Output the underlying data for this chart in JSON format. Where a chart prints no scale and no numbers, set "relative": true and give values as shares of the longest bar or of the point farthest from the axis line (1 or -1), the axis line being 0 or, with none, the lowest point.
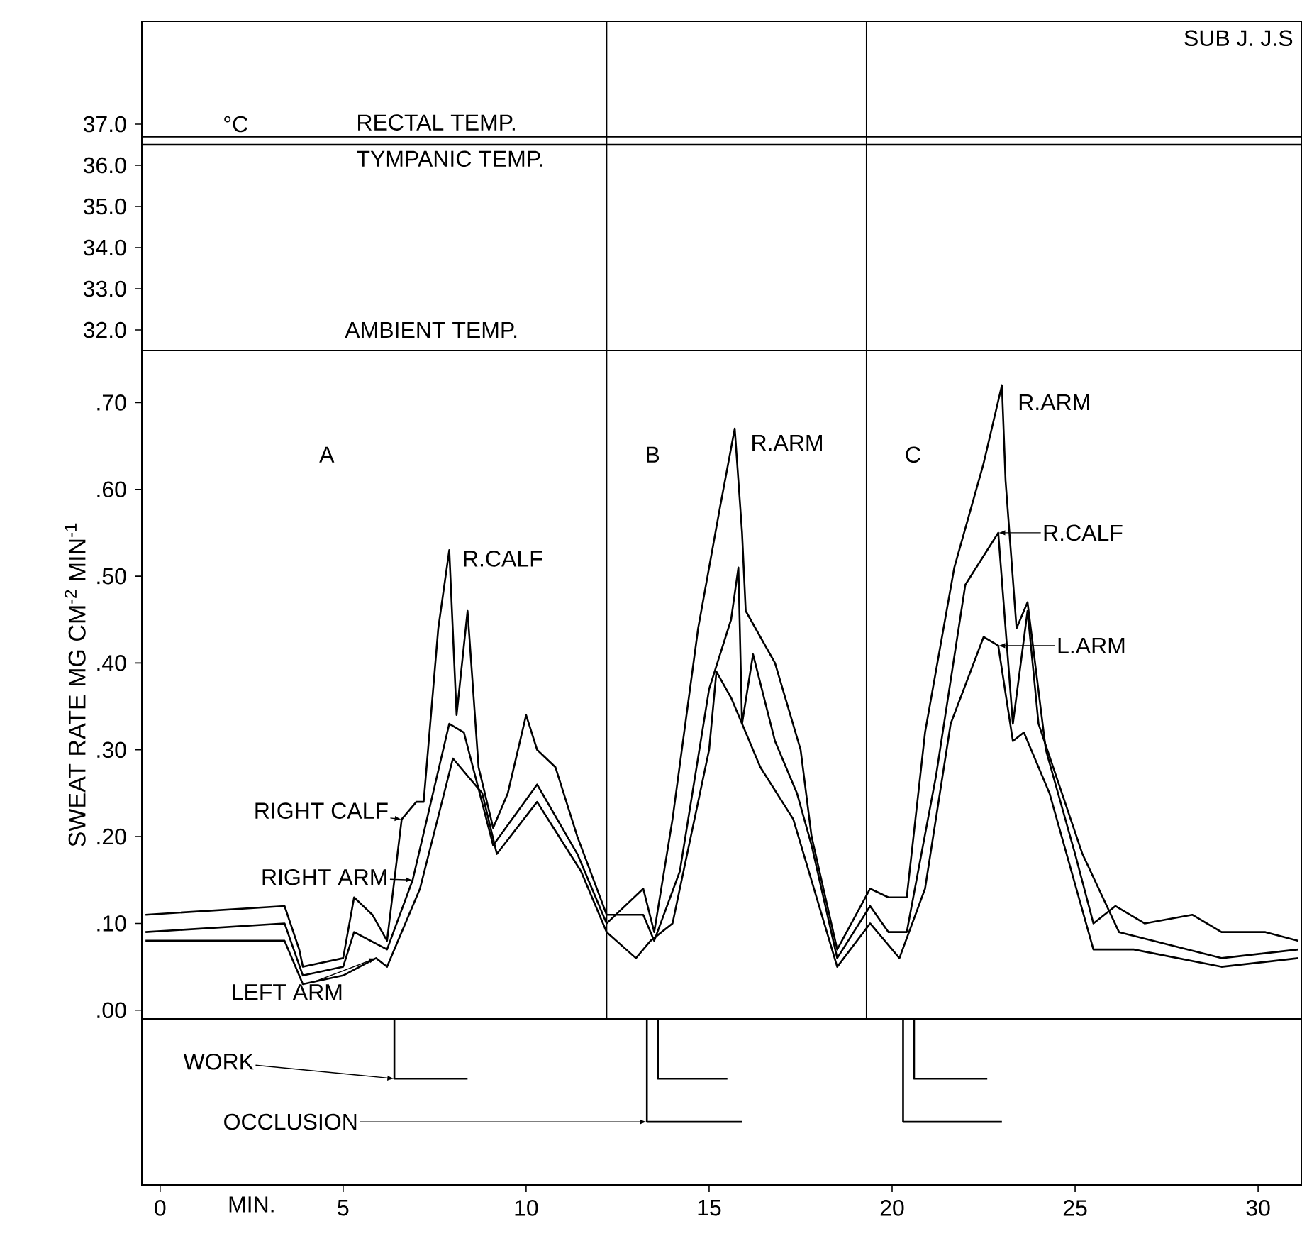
{
  "chart_data": [
    {
      "type": "line",
      "title": "SUB J. J.S",
      "ylabel": "°C",
      "xlim": [
        -0.5,
        31.2
      ],
      "ylim": [
        31.5,
        39.5
      ],
      "tick_labels": "y",
      "yticks": [
        {
          "value": 37,
          "label": "37.0"
        },
        {
          "value": 36,
          "label": "36.0"
        },
        {
          "value": 35,
          "label": "35.0"
        },
        {
          "value": 34,
          "label": "34.0"
        },
        {
          "value": 33,
          "label": "33.0"
        },
        {
          "value": 32,
          "label": "32.0"
        }
      ],
      "series": [
        {
          "name": "RECTAL TEMP.",
          "color": "#000000",
          "x": [
            -0.5,
            31.2
          ],
          "values": [
            36.7,
            36.7
          ]
        },
        {
          "name": "TYMPANIC TEMP.",
          "color": "#000000",
          "x": [
            -0.5,
            31.2
          ],
          "values": [
            36.5,
            36.5
          ]
        }
      ],
      "annotations": [
        "AMBIENT TEMP."
      ],
      "ref_lines": [
        {
          "axis": "x",
          "value": 12.2
        },
        {
          "axis": "x",
          "value": 19.3
        }
      ]
    },
    {
      "type": "line",
      "ylabel": "SWEAT RATE  MG CM$^{-2}$ MIN$^{-1}$",
      "xlim": [
        -0.5,
        31.2
      ],
      "ylim": [
        -0.01,
        0.76
      ],
      "tick_labels": "y",
      "legend": "left",
      "yticks": [
        {
          "value": 0,
          "label": ".00"
        },
        {
          "value": 0.1,
          "label": ".10"
        },
        {
          "value": 0.2,
          "label": ".20"
        },
        {
          "value": 0.3,
          "label": ".30"
        },
        {
          "value": 0.4,
          "label": ".40"
        },
        {
          "value": 0.5,
          "label": ".50"
        },
        {
          "value": 0.6,
          "label": ".60"
        },
        {
          "value": 0.7,
          "label": ".70"
        }
      ],
      "series": [
        {
          "name": "RIGHT CALF",
          "color": "#000000",
          "x": [
            -0.4,
            3.4,
            3.8,
            3.9,
            5.0,
            5.3,
            5.8,
            6.2,
            6.6,
            7.0,
            7.2,
            7.6,
            7.9,
            8.1,
            8.4,
            8.7,
            9.1,
            9.5,
            10.0,
            10.3,
            10.8,
            11.4,
            12.2,
            13.2,
            13.5,
            14.2,
            15.0,
            15.6,
            15.8,
            15.9,
            16.2,
            16.8,
            17.4,
            17.8,
            18.5,
            19.4,
            19.9,
            20.4,
            21.2,
            22.0,
            22.9,
            23.3,
            23.7,
            24.0,
            25.2,
            26.2,
            29.0,
            31.1
          ],
          "values": [
            0.11,
            0.12,
            0.07,
            0.05,
            0.06,
            0.13,
            0.11,
            0.08,
            0.22,
            0.24,
            0.24,
            0.44,
            0.53,
            0.34,
            0.46,
            0.28,
            0.21,
            0.25,
            0.34,
            0.3,
            0.28,
            0.2,
            0.11,
            0.11,
            0.08,
            0.16,
            0.37,
            0.45,
            0.51,
            0.33,
            0.41,
            0.31,
            0.25,
            0.19,
            0.06,
            0.12,
            0.09,
            0.09,
            0.27,
            0.49,
            0.55,
            0.33,
            0.46,
            0.33,
            0.18,
            0.09,
            0.06,
            0.07
          ]
        },
        {
          "name": "RIGHT ARM",
          "color": "#000000",
          "x": [
            -0.4,
            3.4,
            3.9,
            5.0,
            5.3,
            6.2,
            6.9,
            7.9,
            8.3,
            9.1,
            10.3,
            11.4,
            12.2,
            13.2,
            13.5,
            14.0,
            14.7,
            15.3,
            15.7,
            15.9,
            16.0,
            16.8,
            17.5,
            17.8,
            18.5,
            19.4,
            19.9,
            20.4,
            20.9,
            21.7,
            22.5,
            23.0,
            23.1,
            23.4,
            23.7,
            24.2,
            25.0,
            25.5,
            26.1,
            26.9,
            28.2,
            29.0,
            30.2,
            31.1
          ],
          "values": [
            0.09,
            0.1,
            0.04,
            0.05,
            0.09,
            0.07,
            0.15,
            0.33,
            0.32,
            0.19,
            0.26,
            0.18,
            0.1,
            0.14,
            0.09,
            0.22,
            0.44,
            0.58,
            0.67,
            0.55,
            0.46,
            0.4,
            0.3,
            0.2,
            0.07,
            0.14,
            0.13,
            0.13,
            0.32,
            0.51,
            0.63,
            0.72,
            0.61,
            0.44,
            0.47,
            0.3,
            0.18,
            0.1,
            0.12,
            0.1,
            0.11,
            0.09,
            0.09,
            0.08
          ]
        },
        {
          "name": "LEFT ARM",
          "color": "#000000",
          "x": [
            -0.4,
            3.4,
            3.9,
            5.0,
            5.9,
            6.2,
            7.1,
            8.0,
            8.8,
            9.2,
            10.3,
            11.5,
            12.2,
            13.0,
            13.4,
            14.0,
            15.0,
            15.2,
            15.6,
            16.4,
            17.3,
            18.5,
            19.4,
            20.2,
            20.9,
            21.6,
            22.5,
            22.9,
            23.3,
            23.6,
            24.3,
            25.5,
            26.6,
            29.0,
            31.1
          ],
          "values": [
            0.08,
            0.08,
            0.03,
            0.04,
            0.06,
            0.05,
            0.14,
            0.29,
            0.25,
            0.18,
            0.24,
            0.16,
            0.09,
            0.06,
            0.08,
            0.1,
            0.3,
            0.39,
            0.36,
            0.28,
            0.22,
            0.05,
            0.1,
            0.06,
            0.14,
            0.33,
            0.43,
            0.42,
            0.31,
            0.32,
            0.25,
            0.07,
            0.07,
            0.05,
            0.06
          ]
        }
      ],
      "annotations": [
        "A",
        "B",
        "C",
        {
          "text": "R.CALF",
          "x": 7.9,
          "y": 0.53
        },
        {
          "text": "R.ARM",
          "x": 15.7,
          "y": 0.67
        },
        {
          "text": "R.ARM",
          "x": 23.0,
          "y": 0.72
        },
        {
          "text": "R.CALF",
          "x": 22.9,
          "y": 0.55
        },
        {
          "text": "L.ARM",
          "x": 22.9,
          "y": 0.42
        }
      ],
      "ref_lines": [
        {
          "axis": "x",
          "value": 12.2
        },
        {
          "axis": "x",
          "value": 19.3
        }
      ]
    },
    {
      "type": "line",
      "relative": true,
      "xlabel": "MIN.",
      "xlim": [
        -0.5,
        31.2
      ],
      "xticks": [
        0,
        5,
        10,
        15,
        20,
        25,
        30
      ],
      "tick_labels": "x",
      "series": [
        {
          "name": "WORK",
          "color": "#000000",
          "x": [
            6.4,
            6.4,
            8.4,
            11,
            13.6,
            13.6,
            15.5,
            18,
            20.6,
            20.6,
            22.6
          ],
          "values": [
            1,
            0.64,
            0.64,
            null,
            1,
            0.64,
            0.64,
            null,
            1,
            0.64,
            0.64
          ]
        },
        {
          "name": "OCCLUSION",
          "color": "#000000",
          "x": [
            13.3,
            13.3,
            15.9,
            18,
            20.3,
            20.3,
            23.0
          ],
          "values": [
            1,
            0.38,
            0.38,
            null,
            1,
            0.38,
            0.38
          ]
        }
      ]
    }
  ]
}
